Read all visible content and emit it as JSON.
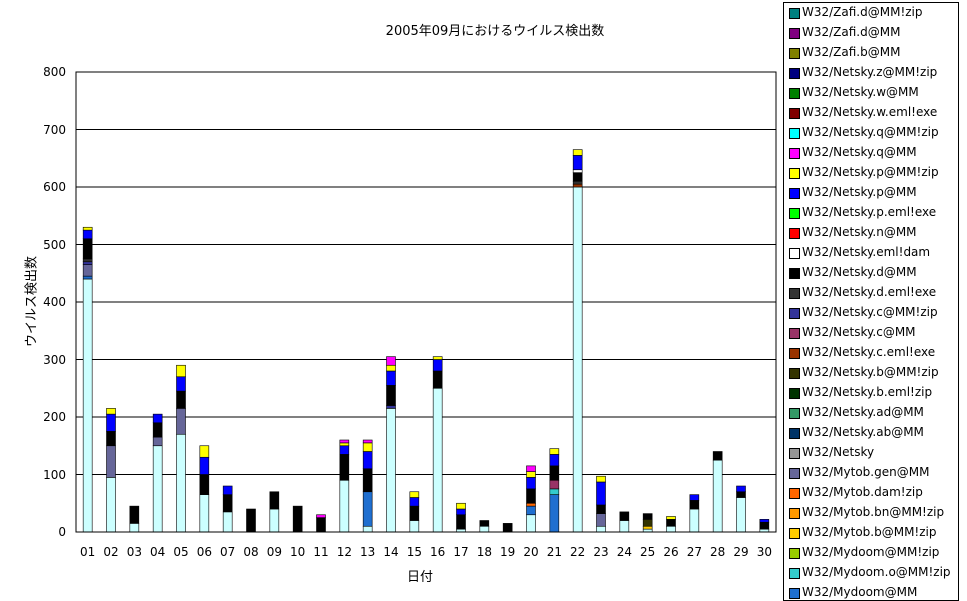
{
  "chart_data": {
    "type": "bar",
    "stacked": true,
    "title": "2005年09月におけるウイルス検出数",
    "xlabel": "日付",
    "ylabel": "ウイルス検出数",
    "ylim": [
      0,
      800
    ],
    "yticks": [
      "0",
      "100",
      "200",
      "300",
      "400",
      "500",
      "600",
      "700",
      "800"
    ],
    "grid": true,
    "legend_position": "right",
    "categories": [
      "01",
      "02",
      "03",
      "04",
      "05",
      "06",
      "07",
      "08",
      "09",
      "10",
      "11",
      "12",
      "13",
      "14",
      "15",
      "16",
      "17",
      "18",
      "19",
      "20",
      "21",
      "22",
      "23",
      "24",
      "25",
      "26",
      "27",
      "28",
      "29",
      "30"
    ],
    "series": [
      {
        "name": "W32/Mydoom@MM",
        "color": "#1f6fd0",
        "values": [
          5,
          0,
          0,
          0,
          0,
          0,
          0,
          0,
          0,
          0,
          0,
          0,
          60,
          0,
          0,
          0,
          0,
          0,
          0,
          15,
          65,
          0,
          0,
          0,
          0,
          0,
          0,
          0,
          0,
          0
        ]
      },
      {
        "name": "W32/Mydoom.o@MM!zip",
        "color": "#33cccc",
        "values": [
          0,
          0,
          0,
          0,
          0,
          0,
          0,
          0,
          0,
          0,
          0,
          0,
          0,
          0,
          0,
          0,
          0,
          0,
          0,
          0,
          10,
          0,
          0,
          0,
          0,
          0,
          0,
          0,
          0,
          0
        ]
      },
      {
        "name": "W32/Mydoom@MM!zip",
        "color": "#99cc00",
        "values": [
          0,
          0,
          0,
          0,
          0,
          0,
          0,
          0,
          0,
          0,
          0,
          0,
          0,
          0,
          0,
          0,
          0,
          0,
          0,
          0,
          0,
          0,
          0,
          0,
          0,
          0,
          0,
          0,
          0,
          0
        ]
      },
      {
        "name": "W32/Mytob.b@MM!zip",
        "color": "#ffcc00",
        "values": [
          0,
          0,
          0,
          0,
          0,
          0,
          0,
          0,
          0,
          0,
          0,
          0,
          0,
          0,
          0,
          0,
          0,
          0,
          0,
          0,
          0,
          0,
          0,
          0,
          5,
          0,
          0,
          0,
          0,
          0
        ]
      },
      {
        "name": "W32/Mytob.bn@MM!zip",
        "color": "#ff9900",
        "values": [
          0,
          0,
          0,
          0,
          0,
          0,
          0,
          0,
          0,
          0,
          0,
          0,
          0,
          0,
          0,
          0,
          0,
          0,
          0,
          0,
          0,
          0,
          0,
          0,
          0,
          0,
          0,
          0,
          0,
          0
        ]
      },
      {
        "name": "W32/Mytob.dam!zip",
        "color": "#ff6600",
        "values": [
          0,
          0,
          0,
          0,
          0,
          0,
          0,
          0,
          0,
          0,
          0,
          0,
          0,
          0,
          0,
          0,
          0,
          0,
          0,
          5,
          0,
          0,
          0,
          0,
          0,
          0,
          0,
          0,
          0,
          0
        ]
      },
      {
        "name": "W32/Mytob.gen@MM",
        "color": "#666699",
        "values": [
          20,
          55,
          0,
          15,
          45,
          0,
          0,
          0,
          0,
          0,
          0,
          0,
          0,
          0,
          0,
          0,
          0,
          0,
          0,
          0,
          0,
          0,
          22,
          0,
          0,
          0,
          0,
          0,
          0,
          0
        ]
      },
      {
        "name": "W32/Netsky",
        "color": "#969696",
        "values": [
          0,
          0,
          0,
          0,
          0,
          0,
          0,
          0,
          0,
          0,
          0,
          0,
          0,
          0,
          0,
          0,
          0,
          0,
          0,
          0,
          0,
          0,
          0,
          0,
          0,
          0,
          0,
          0,
          0,
          0
        ]
      },
      {
        "name": "W32/Netsky.ab@MM",
        "color": "#003366",
        "values": [
          0,
          0,
          0,
          0,
          0,
          0,
          0,
          0,
          0,
          0,
          0,
          0,
          0,
          0,
          0,
          0,
          0,
          0,
          0,
          0,
          0,
          0,
          0,
          0,
          0,
          0,
          0,
          0,
          0,
          0
        ]
      },
      {
        "name": "W32/Netsky.ad@MM",
        "color": "#339966",
        "values": [
          0,
          0,
          0,
          0,
          0,
          0,
          0,
          0,
          0,
          0,
          0,
          0,
          0,
          0,
          0,
          0,
          0,
          0,
          0,
          0,
          0,
          0,
          0,
          0,
          0,
          0,
          0,
          0,
          0,
          0
        ]
      },
      {
        "name": "W32/Netsky.b.eml!zip",
        "color": "#003300",
        "values": [
          0,
          0,
          0,
          0,
          0,
          0,
          0,
          0,
          0,
          0,
          0,
          0,
          0,
          0,
          0,
          0,
          0,
          0,
          0,
          0,
          0,
          0,
          0,
          0,
          0,
          0,
          0,
          0,
          0,
          0
        ]
      },
      {
        "name": "W32/Netsky.b@MM!zip",
        "color": "#333300",
        "values": [
          0,
          0,
          0,
          0,
          0,
          0,
          0,
          0,
          0,
          0,
          0,
          0,
          0,
          0,
          0,
          0,
          0,
          0,
          0,
          0,
          0,
          0,
          0,
          0,
          12,
          0,
          0,
          0,
          0,
          0
        ]
      },
      {
        "name": "W32/Netsky.c.eml!exe",
        "color": "#993300",
        "values": [
          0,
          0,
          0,
          0,
          0,
          0,
          0,
          0,
          0,
          0,
          0,
          0,
          0,
          0,
          0,
          0,
          0,
          0,
          0,
          0,
          0,
          5,
          0,
          0,
          0,
          0,
          0,
          0,
          0,
          0
        ]
      },
      {
        "name": "W32/Netsky.c@MM",
        "color": "#993366",
        "values": [
          0,
          0,
          0,
          0,
          0,
          0,
          0,
          0,
          0,
          0,
          0,
          0,
          0,
          0,
          0,
          0,
          0,
          0,
          0,
          0,
          15,
          0,
          0,
          0,
          0,
          0,
          0,
          0,
          0,
          0
        ]
      },
      {
        "name": "W32/Netsky.c@MM!zip",
        "color": "#333399",
        "values": [
          5,
          0,
          0,
          0,
          0,
          0,
          0,
          0,
          0,
          0,
          0,
          0,
          0,
          5,
          0,
          0,
          0,
          0,
          0,
          0,
          0,
          0,
          0,
          0,
          0,
          0,
          0,
          0,
          0,
          0
        ]
      },
      {
        "name": "W32/Netsky.d.eml!exe",
        "color": "#333333",
        "values": [
          5,
          0,
          0,
          0,
          0,
          0,
          0,
          0,
          0,
          0,
          0,
          0,
          0,
          0,
          0,
          0,
          0,
          0,
          0,
          0,
          0,
          5,
          0,
          0,
          0,
          0,
          0,
          0,
          0,
          0
        ]
      },
      {
        "name": "W32/Netsky.d@MM",
        "color": "#000000",
        "values": [
          35,
          25,
          30,
          25,
          30,
          35,
          30,
          40,
          30,
          45,
          25,
          45,
          40,
          35,
          25,
          30,
          25,
          10,
          15,
          25,
          25,
          15,
          15,
          15,
          10,
          12,
          15,
          15,
          10,
          12
        ]
      },
      {
        "name": "W32/Netsky.eml!dam",
        "color": "#ffffff",
        "values": [
          0,
          0,
          0,
          0,
          0,
          0,
          0,
          0,
          0,
          0,
          0,
          0,
          0,
          0,
          0,
          0,
          0,
          0,
          0,
          0,
          0,
          5,
          0,
          0,
          0,
          0,
          0,
          0,
          0,
          0
        ]
      },
      {
        "name": "W32/Netsky.n@MM",
        "color": "#ff0000",
        "values": [
          0,
          0,
          0,
          0,
          0,
          0,
          0,
          0,
          0,
          0,
          0,
          0,
          0,
          0,
          0,
          0,
          0,
          0,
          0,
          0,
          0,
          0,
          0,
          0,
          0,
          0,
          0,
          0,
          0,
          0
        ]
      },
      {
        "name": "W32/Netsky.p.eml!exe",
        "color": "#00ff00",
        "values": [
          0,
          0,
          0,
          0,
          0,
          0,
          0,
          0,
          0,
          0,
          0,
          0,
          0,
          0,
          0,
          0,
          0,
          0,
          0,
          0,
          0,
          0,
          0,
          0,
          0,
          0,
          0,
          0,
          0,
          0
        ]
      },
      {
        "name": "W32/Netsky.p@MM",
        "color": "#0000ff",
        "values": [
          15,
          30,
          0,
          15,
          25,
          30,
          15,
          0,
          0,
          0,
          0,
          15,
          30,
          25,
          15,
          20,
          10,
          0,
          0,
          20,
          20,
          25,
          40,
          0,
          0,
          0,
          10,
          0,
          10,
          5
        ]
      },
      {
        "name": "W32/Netsky.p@MM!zip",
        "color": "#ffff00",
        "values": [
          5,
          10,
          0,
          0,
          20,
          20,
          0,
          0,
          0,
          0,
          0,
          5,
          15,
          10,
          10,
          5,
          10,
          0,
          0,
          10,
          10,
          10,
          10,
          0,
          0,
          5,
          0,
          0,
          0,
          0
        ]
      },
      {
        "name": "W32/Netsky.q@MM",
        "color": "#ff00ff",
        "values": [
          0,
          0,
          0,
          0,
          0,
          0,
          0,
          0,
          0,
          0,
          5,
          5,
          5,
          15,
          0,
          0,
          0,
          0,
          0,
          10,
          0,
          0,
          0,
          0,
          0,
          0,
          0,
          0,
          0,
          0
        ]
      },
      {
        "name": "W32/Netsky.q@MM!zip",
        "color": "#00ffff",
        "values": [
          0,
          0,
          0,
          0,
          0,
          0,
          0,
          0,
          0,
          0,
          0,
          0,
          0,
          0,
          0,
          0,
          0,
          0,
          0,
          0,
          0,
          0,
          0,
          0,
          0,
          0,
          0,
          0,
          0,
          0
        ]
      },
      {
        "name": "W32/Netsky.w.eml!exe",
        "color": "#800000",
        "values": [
          0,
          0,
          0,
          0,
          0,
          0,
          0,
          0,
          0,
          0,
          0,
          0,
          0,
          0,
          0,
          0,
          0,
          0,
          0,
          0,
          0,
          0,
          0,
          0,
          0,
          0,
          0,
          0,
          0,
          0
        ]
      },
      {
        "name": "W32/Netsky.w@MM",
        "color": "#008000",
        "values": [
          0,
          0,
          0,
          0,
          0,
          0,
          0,
          0,
          0,
          0,
          0,
          0,
          0,
          0,
          0,
          0,
          0,
          0,
          0,
          0,
          0,
          0,
          0,
          0,
          0,
          0,
          0,
          0,
          0,
          0
        ]
      },
      {
        "name": "W32/Netsky.z@MM!zip",
        "color": "#000080",
        "values": [
          0,
          0,
          0,
          0,
          0,
          0,
          0,
          0,
          0,
          0,
          0,
          0,
          0,
          0,
          0,
          0,
          0,
          0,
          0,
          0,
          0,
          0,
          0,
          0,
          0,
          0,
          0,
          0,
          0,
          0
        ]
      },
      {
        "name": "W32/Zafi.b@MM",
        "color": "#808000",
        "values": [
          0,
          0,
          0,
          0,
          0,
          0,
          0,
          0,
          0,
          0,
          0,
          0,
          0,
          0,
          0,
          0,
          0,
          0,
          0,
          0,
          0,
          0,
          0,
          0,
          0,
          0,
          0,
          0,
          0,
          0
        ]
      },
      {
        "name": "W32/Zafi.d@MM",
        "color": "#800080",
        "values": [
          0,
          0,
          0,
          0,
          0,
          0,
          0,
          0,
          0,
          0,
          0,
          0,
          0,
          0,
          0,
          0,
          0,
          0,
          0,
          0,
          0,
          0,
          0,
          0,
          0,
          0,
          0,
          0,
          0,
          0
        ]
      },
      {
        "name": "W32/Zafi.d@MM!zip",
        "color": "#008080",
        "values": [
          0,
          0,
          0,
          0,
          0,
          0,
          0,
          0,
          0,
          0,
          0,
          0,
          0,
          0,
          0,
          0,
          0,
          0,
          0,
          0,
          0,
          0,
          0,
          0,
          0,
          0,
          0,
          0,
          0,
          0
        ]
      }
    ],
    "base_series": {
      "name": "",
      "color": "#ccffff",
      "values": [
        440,
        95,
        15,
        150,
        170,
        65,
        35,
        0,
        40,
        0,
        0,
        90,
        10,
        215,
        20,
        250,
        5,
        10,
        0,
        30,
        0,
        600,
        10,
        20,
        5,
        10,
        40,
        125,
        60,
        5
      ]
    }
  },
  "legend": {
    "items": [
      {
        "label": "W32/Zafi.d@MM!zip",
        "color": "#008080"
      },
      {
        "label": "W32/Zafi.d@MM",
        "color": "#800080"
      },
      {
        "label": "W32/Zafi.b@MM",
        "color": "#808000"
      },
      {
        "label": "W32/Netsky.z@MM!zip",
        "color": "#000080"
      },
      {
        "label": "W32/Netsky.w@MM",
        "color": "#008000"
      },
      {
        "label": "W32/Netsky.w.eml!exe",
        "color": "#800000"
      },
      {
        "label": "W32/Netsky.q@MM!zip",
        "color": "#00ffff"
      },
      {
        "label": "W32/Netsky.q@MM",
        "color": "#ff00ff"
      },
      {
        "label": "W32/Netsky.p@MM!zip",
        "color": "#ffff00"
      },
      {
        "label": "W32/Netsky.p@MM",
        "color": "#0000ff"
      },
      {
        "label": "W32/Netsky.p.eml!exe",
        "color": "#00ff00"
      },
      {
        "label": "W32/Netsky.n@MM",
        "color": "#ff0000"
      },
      {
        "label": "W32/Netsky.eml!dam",
        "color": "#ffffff"
      },
      {
        "label": "W32/Netsky.d@MM",
        "color": "#000000"
      },
      {
        "label": "W32/Netsky.d.eml!exe",
        "color": "#333333"
      },
      {
        "label": "W32/Netsky.c@MM!zip",
        "color": "#333399"
      },
      {
        "label": "W32/Netsky.c@MM",
        "color": "#993366"
      },
      {
        "label": "W32/Netsky.c.eml!exe",
        "color": "#993300"
      },
      {
        "label": "W32/Netsky.b@MM!zip",
        "color": "#333300"
      },
      {
        "label": "W32/Netsky.b.eml!zip",
        "color": "#003300"
      },
      {
        "label": "W32/Netsky.ad@MM",
        "color": "#339966"
      },
      {
        "label": "W32/Netsky.ab@MM",
        "color": "#003366"
      },
      {
        "label": "W32/Netsky",
        "color": "#969696"
      },
      {
        "label": "W32/Mytob.gen@MM",
        "color": "#666699"
      },
      {
        "label": "W32/Mytob.dam!zip",
        "color": "#ff6600"
      },
      {
        "label": "W32/Mytob.bn@MM!zip",
        "color": "#ff9900"
      },
      {
        "label": "W32/Mytob.b@MM!zip",
        "color": "#ffcc00"
      },
      {
        "label": "W32/Mydoom@MM!zip",
        "color": "#99cc00"
      },
      {
        "label": "W32/Mydoom.o@MM!zip",
        "color": "#33cccc"
      },
      {
        "label": "W32/Mydoom@MM",
        "color": "#1f6fd0"
      }
    ]
  }
}
